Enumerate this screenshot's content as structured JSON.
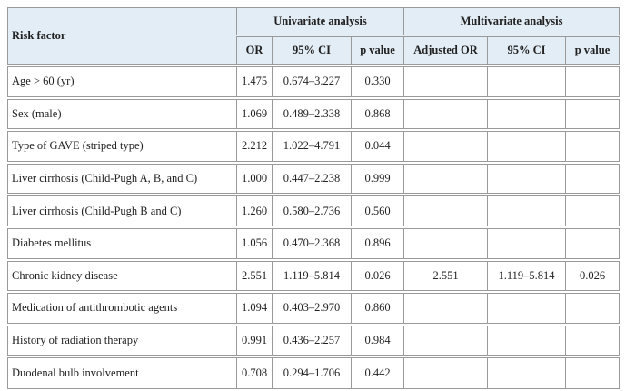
{
  "table": {
    "header": {
      "risk_factor": "Risk factor",
      "univariate": "Univariate analysis",
      "multivariate": "Multivariate analysis",
      "columns": [
        "OR",
        "95% CI",
        "p value",
        "Adjusted OR",
        "95% CI",
        "p value"
      ]
    },
    "rows": [
      {
        "factor": "Age > 60 (yr)",
        "univariate": [
          "1.475",
          "0.674–3.227",
          "0.330"
        ]
      },
      {
        "factor": "Sex (male)",
        "univariate": [
          "1.069",
          "0.489–2.338",
          "0.868"
        ]
      },
      {
        "factor": "Type of GAVE (striped type)",
        "univariate": [
          "2.212",
          "1.022–4.791",
          "0.044"
        ]
      },
      {
        "factor": "Liver cirrhosis (Child-Pugh A, B, and C)",
        "univariate": [
          "1.000",
          "0.447–2.238",
          "0.999"
        ]
      },
      {
        "factor": "Liver cirrhosis (Child-Pugh B and C)",
        "univariate": [
          "1.260",
          "0.580–2.736",
          "0.560"
        ]
      },
      {
        "factor": "Diabetes mellitus",
        "univariate": [
          "1.056",
          "0.470–2.368",
          "0.896"
        ]
      },
      {
        "factor": "Chronic kidney disease",
        "univariate": [
          "2.551",
          "1.119–5.814",
          "0.026"
        ],
        "multivariate": [
          "2.551",
          "1.119–5.814",
          "0.026"
        ]
      },
      {
        "factor": "Medication of antithrombotic agents",
        "univariate": [
          "1.094",
          "0.403–2.970",
          "0.860"
        ]
      },
      {
        "factor": "History of radiation therapy",
        "univariate": [
          "0.991",
          "0.436–2.257",
          "0.984"
        ]
      },
      {
        "factor": "Duodenal bulb involvement",
        "univariate": [
          "0.708",
          "0.294–1.706",
          "0.442"
        ]
      }
    ]
  }
}
